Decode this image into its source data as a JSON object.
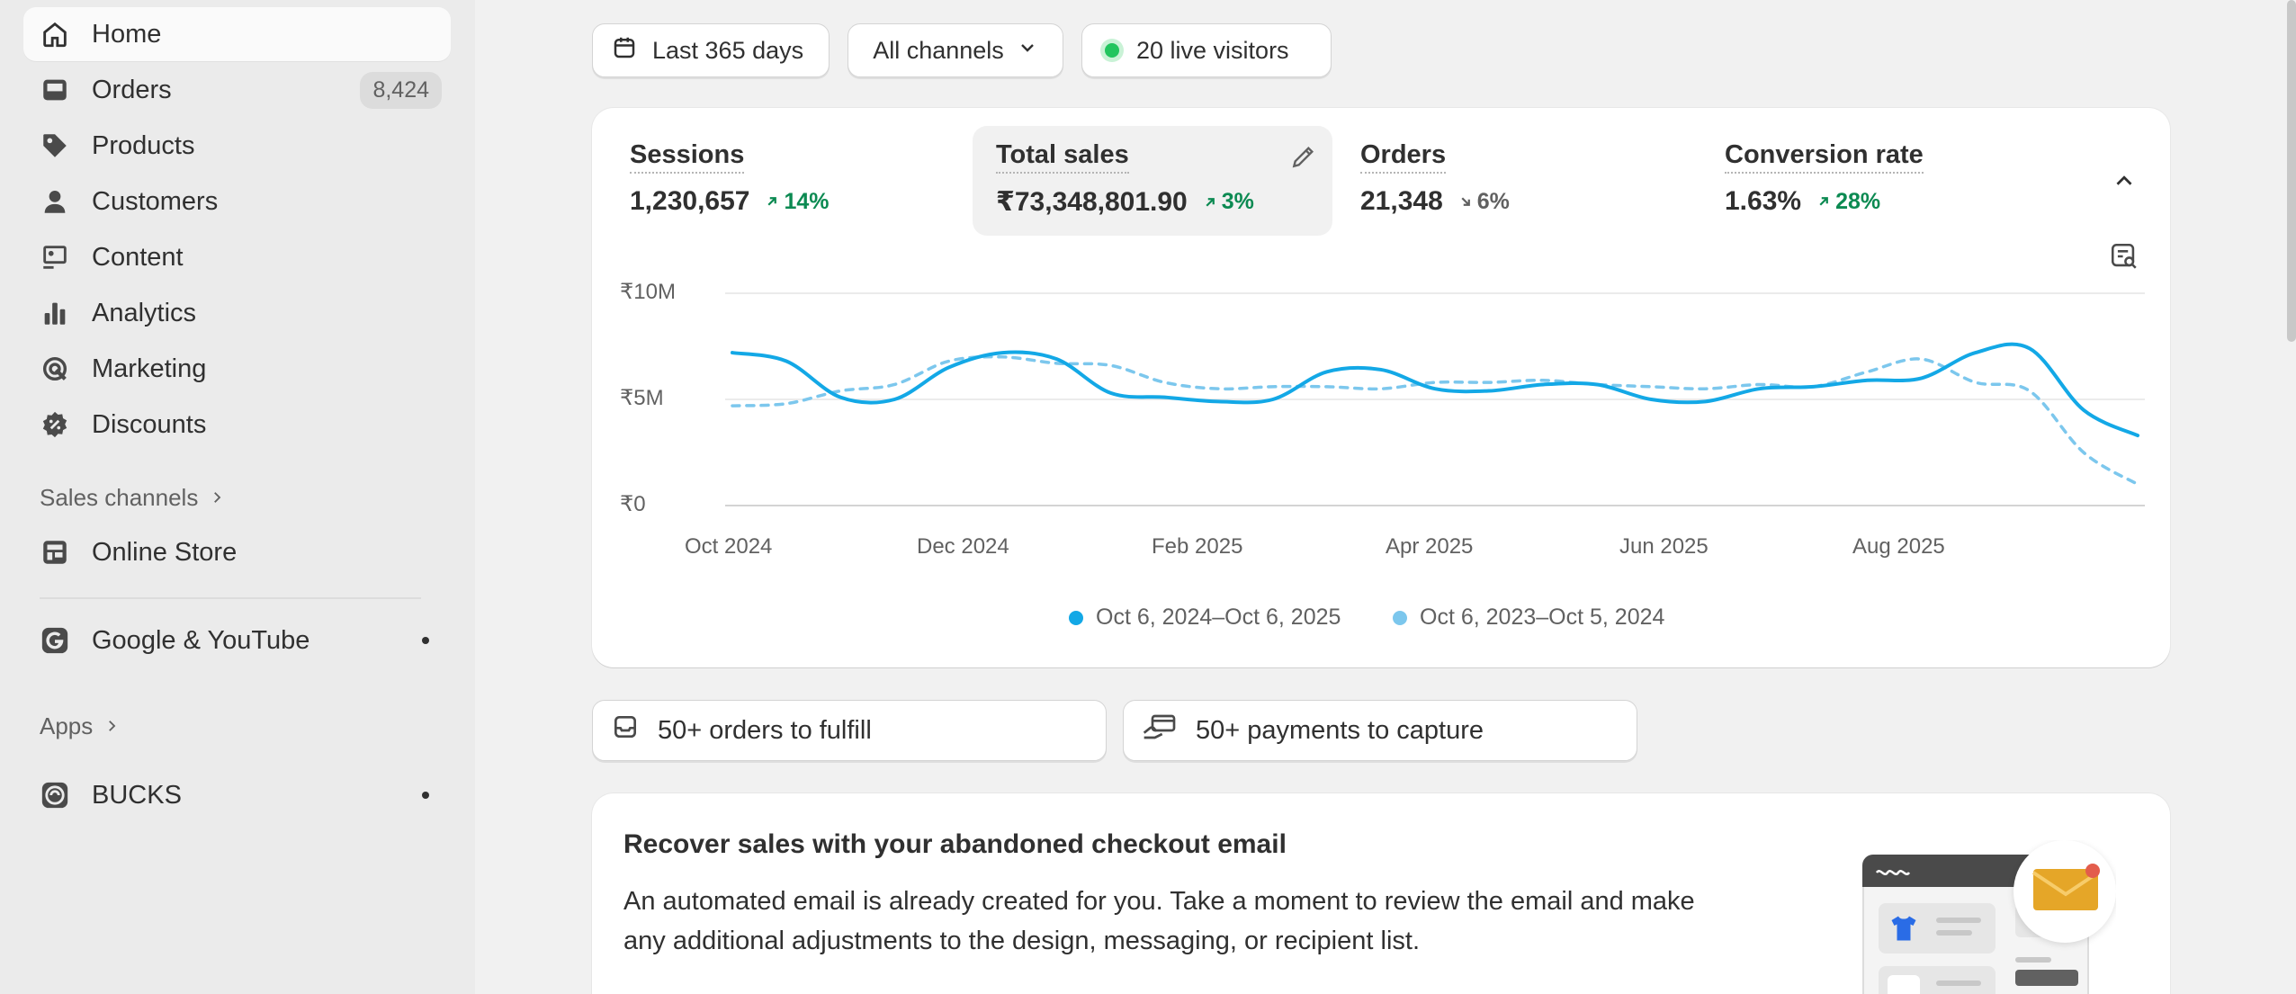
{
  "sidebar": {
    "items": [
      {
        "label": "Home",
        "icon": "home-icon"
      },
      {
        "label": "Orders",
        "icon": "inbox-icon",
        "badge": "8,424"
      },
      {
        "label": "Products",
        "icon": "tag-icon"
      },
      {
        "label": "Customers",
        "icon": "person-icon"
      },
      {
        "label": "Content",
        "icon": "image-icon"
      },
      {
        "label": "Analytics",
        "icon": "bar-chart-icon"
      },
      {
        "label": "Marketing",
        "icon": "target-icon"
      },
      {
        "label": "Discounts",
        "icon": "discount-icon"
      }
    ],
    "sales_channels_label": "Sales channels",
    "online_store_label": "Online Store",
    "google_label": "Google & YouTube",
    "apps_label": "Apps",
    "bucks_label": "BUCKS"
  },
  "toolbar": {
    "date_range": "Last 365 days",
    "channels": "All channels",
    "live_visitors": "20 live visitors"
  },
  "metrics": [
    {
      "label": "Sessions",
      "value": "1,230,657",
      "change": "14%",
      "direction": "up"
    },
    {
      "label": "Total sales",
      "value": "₹73,348,801.90",
      "change": "3%",
      "direction": "up"
    },
    {
      "label": "Orders",
      "value": "21,348",
      "change": "6%",
      "direction": "down"
    },
    {
      "label": "Conversion rate",
      "value": "1.63%",
      "change": "28%",
      "direction": "up"
    }
  ],
  "chart_data": {
    "type": "line",
    "x_ticks": [
      "Oct 2024",
      "Dec 2024",
      "Feb 2025",
      "Apr 2025",
      "Jun 2025",
      "Aug 2025"
    ],
    "y_ticks": [
      "₹10M",
      "₹5M",
      "₹0"
    ],
    "ylim": [
      0,
      10000000
    ],
    "x": [
      "2024-10-06",
      "2024-10-20",
      "2024-11-03",
      "2024-11-17",
      "2024-12-01",
      "2024-12-15",
      "2024-12-29",
      "2025-01-12",
      "2025-01-26",
      "2025-02-09",
      "2025-02-23",
      "2025-03-09",
      "2025-03-23",
      "2025-04-06",
      "2025-04-20",
      "2025-05-04",
      "2025-05-18",
      "2025-06-01",
      "2025-06-15",
      "2025-06-29",
      "2025-07-13",
      "2025-07-27",
      "2025-08-10",
      "2025-08-24",
      "2025-09-07",
      "2025-09-21",
      "2025-10-06"
    ],
    "series": [
      {
        "name": "Oct 6, 2024–Oct 6, 2025",
        "color": "#13a8e6",
        "style": "solid",
        "values": [
          7200000,
          6800000,
          5100000,
          5000000,
          6500000,
          7200000,
          6900000,
          5300000,
          5100000,
          4900000,
          5000000,
          6300000,
          6400000,
          5500000,
          5400000,
          5700000,
          5700000,
          5000000,
          4900000,
          5500000,
          5600000,
          5900000,
          6000000,
          7200000,
          7400000,
          4500000,
          3300000
        ]
      },
      {
        "name": "Oct 6, 2023–Oct 5, 2024",
        "color": "#7cc7ed",
        "style": "dashed",
        "values": [
          4700000,
          4800000,
          5400000,
          5700000,
          6800000,
          7000000,
          6700000,
          6600000,
          5800000,
          5500000,
          5600000,
          5600000,
          5500000,
          5800000,
          5800000,
          5900000,
          5700000,
          5600000,
          5500000,
          5700000,
          5600000,
          6300000,
          6900000,
          5800000,
          5400000,
          2500000,
          1000000
        ]
      }
    ]
  },
  "tasks": {
    "fulfill": "50+ orders to fulfill",
    "capture": "50+ payments to capture"
  },
  "recover": {
    "title": "Recover sales with your abandoned checkout email",
    "body": "An automated email is already created for you. Take a moment to review the email and make any additional adjustments to the design, messaging, or recipient list."
  },
  "colors": {
    "accent": "#13a8e6",
    "accent_prev": "#7cc7ed",
    "positive": "#0c8a52",
    "live_dot": "#22c55e"
  }
}
